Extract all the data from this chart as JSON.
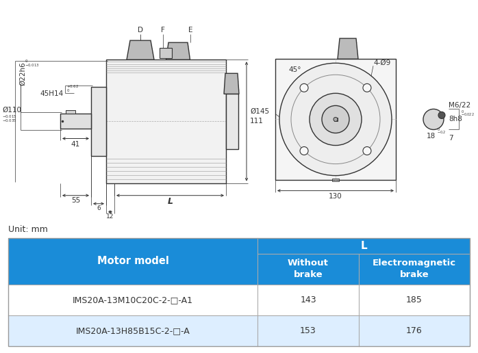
{
  "bg_color": "#ffffff",
  "line_color": "#333333",
  "dim_color": "#333333",
  "table": {
    "blue": "#1a8cd8",
    "light_blue": "#ddeeff",
    "white": "#ffffff",
    "text_white": "#ffffff",
    "text_dark": "#333333",
    "rows": [
      [
        "IMS20A-13M10C20C-2-□-A1",
        "143",
        "185"
      ],
      [
        "IMS20A-13H85B15C-2-□-A",
        "153",
        "176"
      ]
    ]
  }
}
